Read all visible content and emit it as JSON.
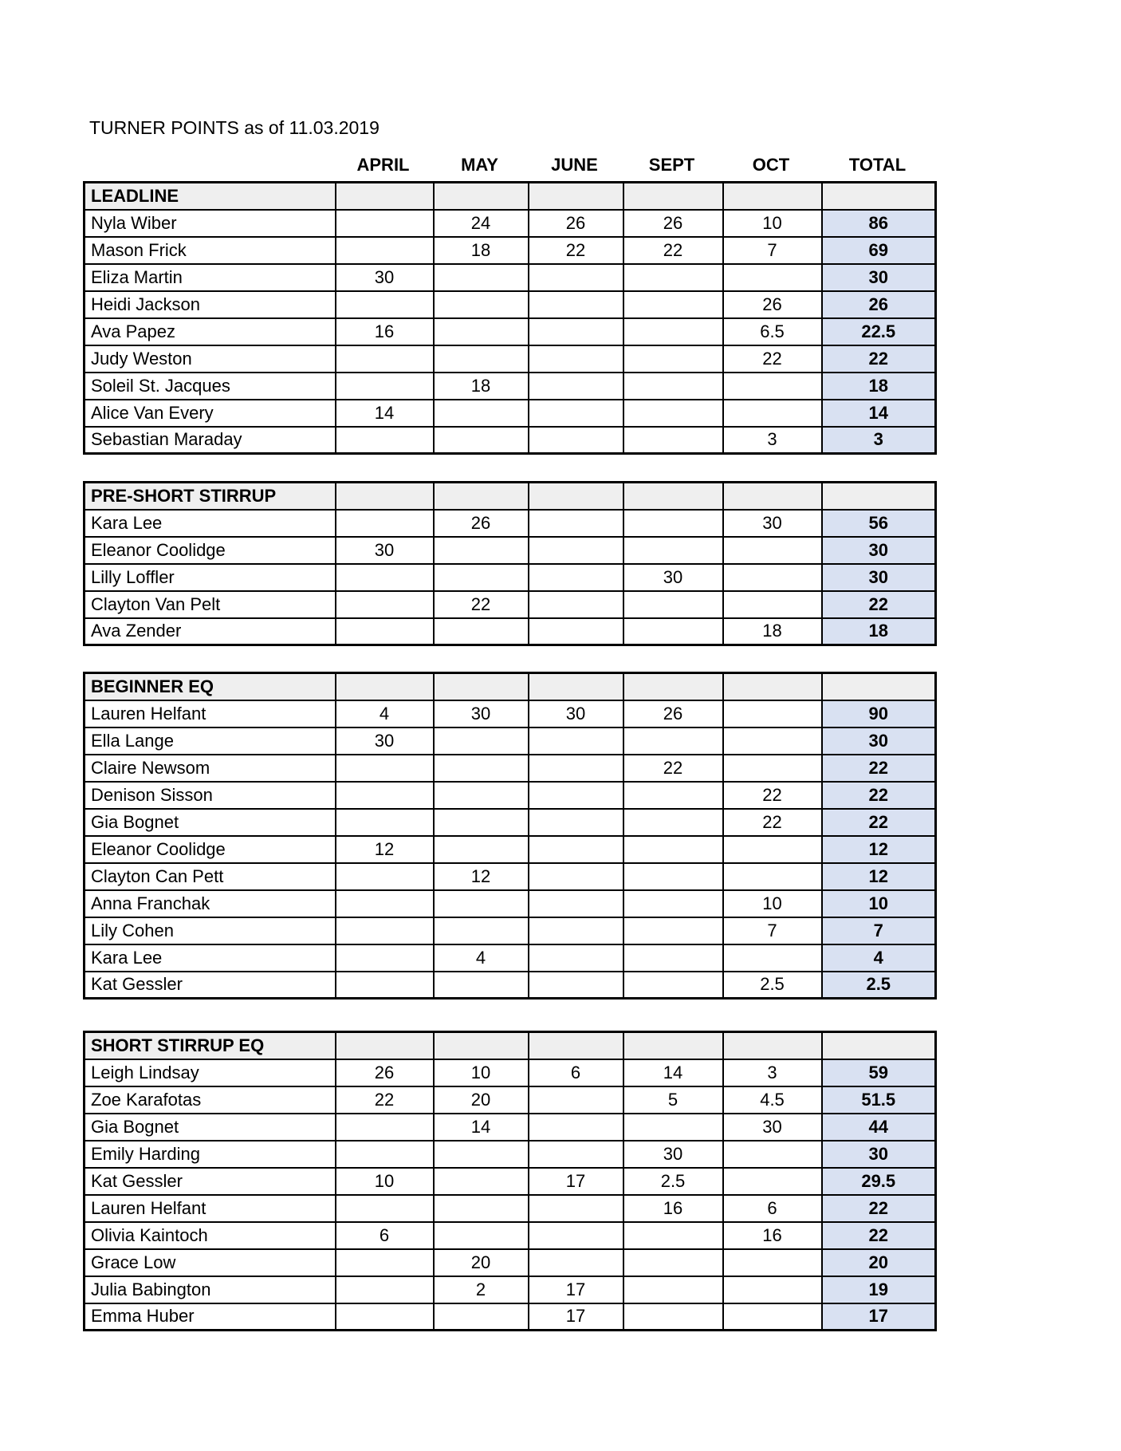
{
  "title": "TURNER POINTS as of 11.03.2019",
  "columns": [
    "APRIL",
    "MAY",
    "JUNE",
    "SEPT",
    "OCT",
    "TOTAL"
  ],
  "colors": {
    "section_header_bg": "#efefef",
    "total_column_bg": "#d9e1f2",
    "border": "#000000"
  },
  "layout_tops": [
    227,
    603,
    842,
    1292
  ],
  "sections": [
    {
      "name": "LEADLINE",
      "rows": [
        {
          "name": "Nyla Wiber",
          "cells": [
            "",
            "24",
            "26",
            "26",
            "10"
          ],
          "total": "86"
        },
        {
          "name": "Mason Frick",
          "cells": [
            "",
            "18",
            "22",
            "22",
            "7"
          ],
          "total": "69"
        },
        {
          "name": "Eliza Martin",
          "cells": [
            "30",
            "",
            "",
            "",
            ""
          ],
          "total": "30"
        },
        {
          "name": "Heidi Jackson",
          "cells": [
            "",
            "",
            "",
            "",
            "26"
          ],
          "total": "26"
        },
        {
          "name": "Ava Papez",
          "cells": [
            "16",
            "",
            "",
            "",
            "6.5"
          ],
          "total": "22.5"
        },
        {
          "name": "Judy Weston",
          "cells": [
            "",
            "",
            "",
            "",
            "22"
          ],
          "total": "22"
        },
        {
          "name": "Soleil St. Jacques",
          "cells": [
            "",
            "18",
            "",
            "",
            ""
          ],
          "total": "18"
        },
        {
          "name": "Alice Van Every",
          "cells": [
            "14",
            "",
            "",
            "",
            ""
          ],
          "total": "14"
        },
        {
          "name": "Sebastian Maraday",
          "cells": [
            "",
            "",
            "",
            "",
            "3"
          ],
          "total": "3"
        }
      ]
    },
    {
      "name": "PRE-SHORT STIRRUP",
      "rows": [
        {
          "name": "Kara Lee",
          "cells": [
            "",
            "26",
            "",
            "",
            "30"
          ],
          "total": "56"
        },
        {
          "name": "Eleanor Coolidge",
          "cells": [
            "30",
            "",
            "",
            "",
            ""
          ],
          "total": "30"
        },
        {
          "name": "Lilly Loffler",
          "cells": [
            "",
            "",
            "",
            "30",
            ""
          ],
          "total": "30"
        },
        {
          "name": "Clayton Van Pelt",
          "cells": [
            "",
            "22",
            "",
            "",
            ""
          ],
          "total": "22"
        },
        {
          "name": "Ava Zender",
          "cells": [
            "",
            "",
            "",
            "",
            "18"
          ],
          "total": "18"
        }
      ]
    },
    {
      "name": "BEGINNER EQ",
      "rows": [
        {
          "name": "Lauren Helfant",
          "cells": [
            "4",
            "30",
            "30",
            "26",
            ""
          ],
          "total": "90"
        },
        {
          "name": "Ella Lange",
          "cells": [
            "30",
            "",
            "",
            "",
            ""
          ],
          "total": "30"
        },
        {
          "name": "Claire Newsom",
          "cells": [
            "",
            "",
            "",
            "22",
            ""
          ],
          "total": "22"
        },
        {
          "name": "Denison Sisson",
          "cells": [
            "",
            "",
            "",
            "",
            "22"
          ],
          "total": "22"
        },
        {
          "name": "Gia Bognet",
          "cells": [
            "",
            "",
            "",
            "",
            "22"
          ],
          "total": "22"
        },
        {
          "name": "Eleanor Coolidge",
          "cells": [
            "12",
            "",
            "",
            "",
            ""
          ],
          "total": "12"
        },
        {
          "name": "Clayton Can Pett",
          "cells": [
            "",
            "12",
            "",
            "",
            ""
          ],
          "total": "12"
        },
        {
          "name": "Anna Franchak",
          "cells": [
            "",
            "",
            "",
            "",
            "10"
          ],
          "total": "10"
        },
        {
          "name": "Lily Cohen",
          "cells": [
            "",
            "",
            "",
            "",
            "7"
          ],
          "total": "7"
        },
        {
          "name": "Kara Lee",
          "cells": [
            "",
            "4",
            "",
            "",
            ""
          ],
          "total": "4"
        },
        {
          "name": "Kat Gessler",
          "cells": [
            "",
            "",
            "",
            "",
            "2.5"
          ],
          "total": "2.5"
        }
      ]
    },
    {
      "name": "SHORT STIRRUP EQ",
      "rows": [
        {
          "name": "Leigh Lindsay",
          "cells": [
            "26",
            "10",
            "6",
            "14",
            "3"
          ],
          "total": "59"
        },
        {
          "name": "Zoe Karafotas",
          "cells": [
            "22",
            "20",
            "",
            "5",
            "4.5"
          ],
          "total": "51.5"
        },
        {
          "name": "Gia Bognet",
          "cells": [
            "",
            "14",
            "",
            "",
            "30"
          ],
          "total": "44"
        },
        {
          "name": "Emily Harding",
          "cells": [
            "",
            "",
            "",
            "30",
            ""
          ],
          "total": "30"
        },
        {
          "name": "Kat Gessler",
          "cells": [
            "10",
            "",
            "17",
            "2.5",
            ""
          ],
          "total": "29.5"
        },
        {
          "name": "Lauren Helfant",
          "cells": [
            "",
            "",
            "",
            "16",
            "6"
          ],
          "total": "22"
        },
        {
          "name": "Olivia Kaintoch",
          "cells": [
            "6",
            "",
            "",
            "",
            "16"
          ],
          "total": "22"
        },
        {
          "name": "Grace Low",
          "cells": [
            "",
            "20",
            "",
            "",
            ""
          ],
          "total": "20"
        },
        {
          "name": "Julia Babington",
          "cells": [
            "",
            "2",
            "17",
            "",
            ""
          ],
          "total": "19"
        },
        {
          "name": "Emma Huber",
          "cells": [
            "",
            "",
            "17",
            "",
            ""
          ],
          "total": "17"
        }
      ]
    }
  ]
}
